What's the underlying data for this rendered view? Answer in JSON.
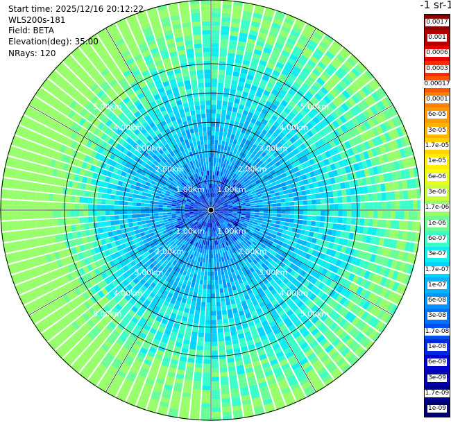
{
  "info": {
    "start_time": "Start time: 2025/12/16 20:12:22",
    "instrument": "WLS200s-181",
    "field": "Field: BETA",
    "elevation": "Elevation(deg): 35.00",
    "nrays": "NRays: 120"
  },
  "colorbar": {
    "title": "-1 sr-1",
    "labels": [
      "0.0017",
      "0.001",
      "0.0006",
      "0.0003",
      "0.00017",
      "0.0001",
      "6e-05",
      "3e-05",
      "1.7e-05",
      "1e-05",
      "6e-06",
      "3e-06",
      "1.7e-06",
      "1e-06",
      "6e-07",
      "3e-07",
      "1.7e-07",
      "1e-07",
      "6e-08",
      "3e-08",
      "1.7e-08",
      "1e-08",
      "6e-09",
      "3e-09",
      "1.7e-09",
      "1e-09"
    ],
    "colors": [
      "#8b0000",
      "#b40000",
      "#e60000",
      "#ff2a00",
      "#ff5500",
      "#ff7f00",
      "#ff9a00",
      "#ffb400",
      "#ffd200",
      "#ffee00",
      "#eeff10",
      "#c8ff3a",
      "#96ff6a",
      "#6aff96",
      "#3affc8",
      "#10eef0",
      "#00d4ff",
      "#00b4ff",
      "#0094ff",
      "#0074ff",
      "#0050f0",
      "#0028e0",
      "#0000d0",
      "#0000b0",
      "#000090",
      "#000070"
    ]
  },
  "chart_data": {
    "type": "heatmap",
    "projection": "polar-ppi",
    "field": "BETA",
    "elevation_deg": 35.0,
    "n_rays": 120,
    "range_ring_labels": [
      "1.00km",
      "2.00km",
      "3.00km",
      "4.00km",
      "5.00km"
    ],
    "range_rings_km": [
      1,
      2,
      3,
      4,
      5
    ],
    "max_range_km": 7.2,
    "colorscale_min": "1e-09",
    "colorscale_max": "0.0017"
  }
}
